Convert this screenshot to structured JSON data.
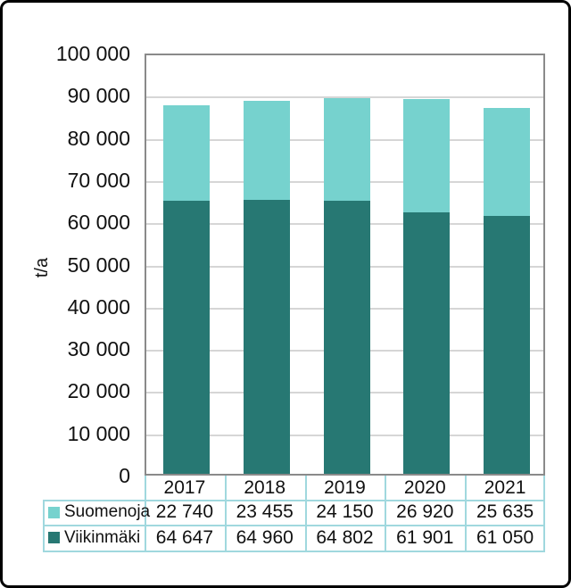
{
  "frame": {
    "background": "#ffffff",
    "border_color": "#000000"
  },
  "chart_data": {
    "type": "bar",
    "stacked": true,
    "title": "",
    "xlabel": "",
    "ylabel": "t/a",
    "categories": [
      "2017",
      "2018",
      "2019",
      "2020",
      "2021"
    ],
    "series": [
      {
        "name": "Suomenoja",
        "color": "#76d2ce",
        "values": [
          22740,
          23455,
          24150,
          26920,
          25635
        ]
      },
      {
        "name": "Viikinmäki",
        "color": "#277873",
        "values": [
          64647,
          64960,
          64802,
          61901,
          61050
        ]
      }
    ],
    "ylim": [
      0,
      100000
    ],
    "ytick_step": 10000,
    "ytick_labels": [
      "0",
      "10 000",
      "20 000",
      "30 000",
      "40 000",
      "50 000",
      "60 000",
      "70 000",
      "80 000",
      "90 000",
      "100 000"
    ],
    "grid": true,
    "gridline_color": "#d6d6d6",
    "plot_border_color": "#8a8a8a",
    "legend_position": "data-table-left",
    "data_table": {
      "border_color": "#a0d8de",
      "header": [
        "2017",
        "2018",
        "2019",
        "2020",
        "2021"
      ],
      "rows": [
        {
          "label": "Suomenoja",
          "swatch_color": "#76d2ce",
          "values": [
            "22 740",
            "23 455",
            "24 150",
            "26 920",
            "25 635"
          ]
        },
        {
          "label": "Viikinmäki",
          "swatch_color": "#277873",
          "values": [
            "64 647",
            "64 960",
            "64 802",
            "61 901",
            "61 050"
          ]
        }
      ]
    }
  }
}
